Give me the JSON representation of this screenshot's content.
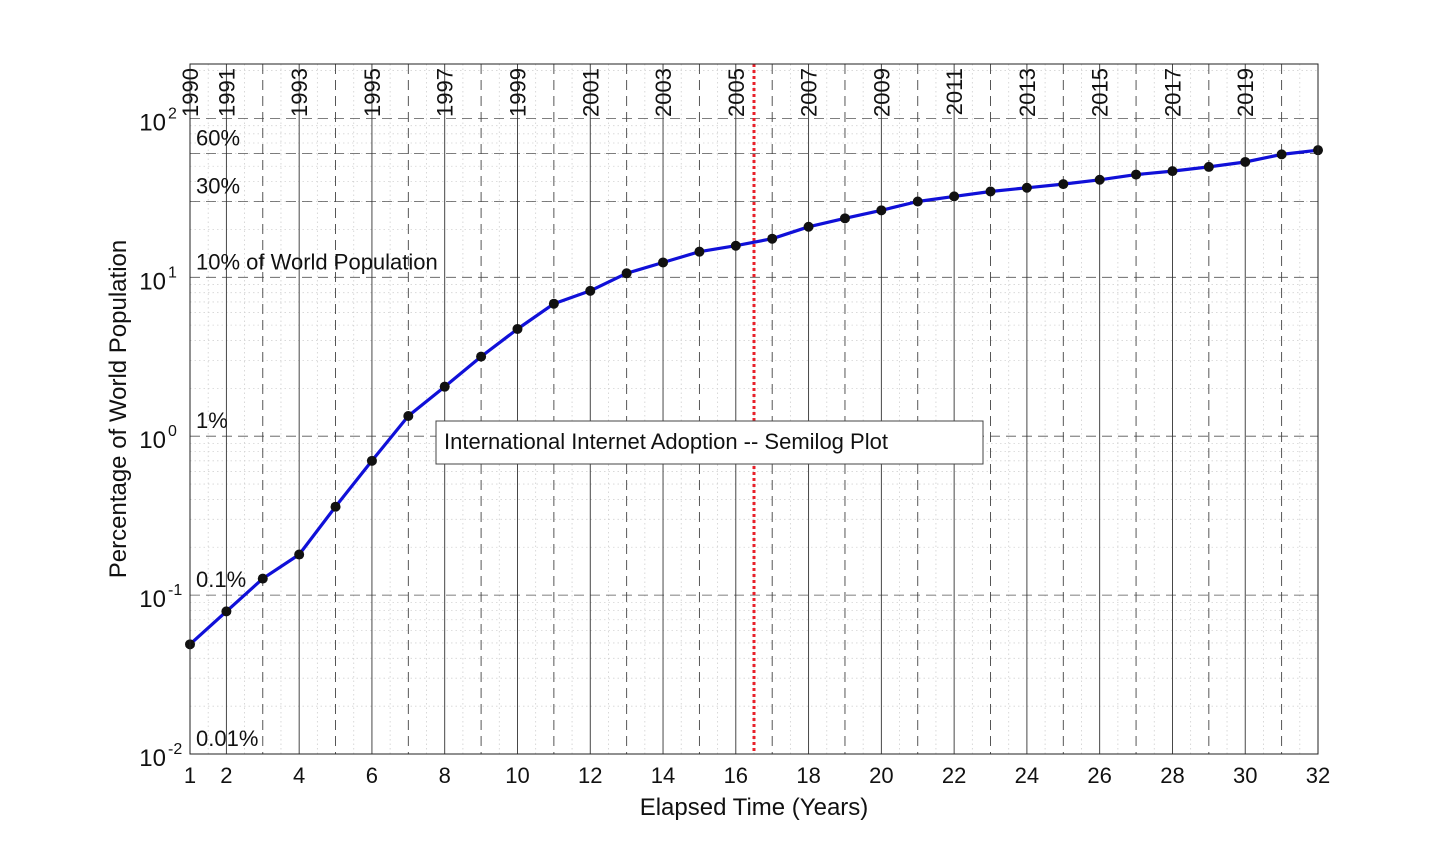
{
  "chart_data": {
    "type": "line",
    "title": "International Internet Adoption -- Semilog Plot",
    "xlabel": "Elapsed Time (Years)",
    "ylabel": "Percentage of World Population",
    "y_scale": "log",
    "xlim": [
      1,
      32
    ],
    "ylim": [
      0.01,
      220
    ],
    "grid": true,
    "x_ticks": [
      1,
      2,
      4,
      6,
      8,
      10,
      12,
      14,
      16,
      18,
      20,
      22,
      24,
      26,
      28,
      30,
      32
    ],
    "x_tick_labels": [
      "1",
      "2",
      "4",
      "6",
      "8",
      "10",
      "12",
      "14",
      "16",
      "18",
      "20",
      "22",
      "24",
      "26",
      "28",
      "30",
      "32"
    ],
    "y_ticks": [
      {
        "value": 0.01,
        "base": "10",
        "exp": "-2"
      },
      {
        "value": 0.1,
        "base": "10",
        "exp": "-1"
      },
      {
        "value": 1,
        "base": "10",
        "exp": "0"
      },
      {
        "value": 10,
        "base": "10",
        "exp": "1"
      },
      {
        "value": 100,
        "base": "10",
        "exp": "2"
      }
    ],
    "year_labels": [
      {
        "x": 1,
        "label": "1990"
      },
      {
        "x": 2,
        "label": "1991"
      },
      {
        "x": 4,
        "label": "1993"
      },
      {
        "x": 6,
        "label": "1995"
      },
      {
        "x": 8,
        "label": "1997"
      },
      {
        "x": 10,
        "label": "1999"
      },
      {
        "x": 12,
        "label": "2001"
      },
      {
        "x": 14,
        "label": "2003"
      },
      {
        "x": 16,
        "label": "2005"
      },
      {
        "x": 18,
        "label": "2007"
      },
      {
        "x": 20,
        "label": "2009"
      },
      {
        "x": 22,
        "label": "2011"
      },
      {
        "x": 24,
        "label": "2013"
      },
      {
        "x": 26,
        "label": "2015"
      },
      {
        "x": 28,
        "label": "2017"
      },
      {
        "x": 30,
        "label": "2019"
      }
    ],
    "percent_reference_lines": [
      {
        "y": 60,
        "label": "60%"
      },
      {
        "y": 30,
        "label": "30%"
      },
      {
        "y": 10,
        "label": "10%",
        "label_suffix": " of World Population"
      },
      {
        "y": 1,
        "label": "1%"
      },
      {
        "y": 0.1,
        "label": "0.1%"
      },
      {
        "y": 0.01,
        "label": "0.01%"
      }
    ],
    "marker_line": {
      "x": 16.5,
      "color": "#e8202a",
      "style": "dotted"
    },
    "series": [
      {
        "color": "#1010d8",
        "marker_color": "#111111",
        "x": [
          1,
          2,
          3,
          4,
          5,
          6,
          7,
          8,
          9,
          10,
          11,
          12,
          13,
          14,
          15,
          16,
          17,
          18,
          19,
          20,
          21,
          22,
          23,
          24,
          25,
          26,
          27,
          28,
          29,
          30,
          31,
          32
        ],
        "y": [
          0.049,
          0.079,
          0.127,
          0.18,
          0.36,
          0.7,
          1.34,
          2.05,
          3.17,
          4.73,
          6.82,
          8.22,
          10.6,
          12.4,
          14.5,
          15.8,
          17.5,
          20.8,
          23.5,
          26.4,
          30.0,
          32.3,
          34.7,
          36.6,
          38.6,
          41.1,
          44.3,
          46.6,
          49.5,
          53.2,
          59.4,
          63.1
        ]
      }
    ]
  }
}
